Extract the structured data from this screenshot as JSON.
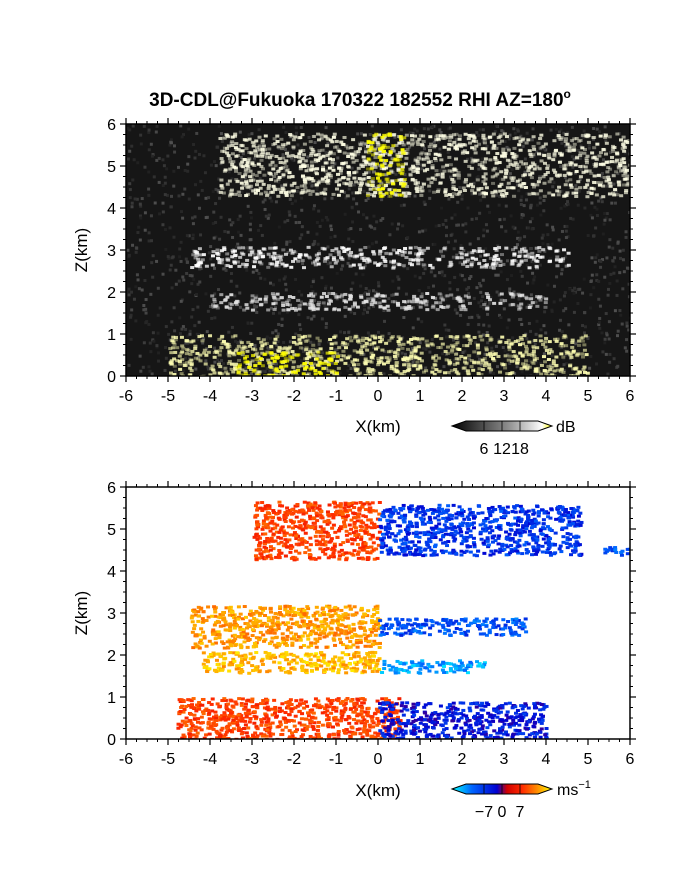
{
  "figure": {
    "title": "3D-CDL@Fukuoka 170322 182552 RHI AZ=180",
    "title_superscript": "o"
  },
  "chart_data": [
    {
      "type": "heatmap",
      "quantity": "reflectivity (SNR)",
      "xlabel": "X(km)",
      "ylabel": "Z(km)",
      "xlim": [
        -6,
        6
      ],
      "ylim": [
        0,
        6
      ],
      "xticks": [
        "-6",
        "-5",
        "-4",
        "-3",
        "-2",
        "-1",
        "0",
        "1",
        "2",
        "3",
        "4",
        "5",
        "6"
      ],
      "yticks": [
        "0",
        "1",
        "2",
        "3",
        "4",
        "5",
        "6"
      ],
      "colorbar": {
        "unit": "dB",
        "ticks": [
          "6",
          "12",
          "18"
        ],
        "range": [
          0,
          20
        ],
        "colors": [
          "#000000",
          "#ffffff",
          "#ffff00"
        ]
      },
      "layers": [
        {
          "feature": "upper cloud layer",
          "x": [
            -3.8,
            6.0
          ],
          "z": [
            4.3,
            5.8
          ],
          "level_db": 11
        },
        {
          "feature": "saturated core",
          "x": [
            -0.3,
            0.6
          ],
          "z": [
            4.3,
            5.8
          ],
          "level_db": 20
        },
        {
          "feature": "mid layer",
          "x": [
            -4.5,
            4.5
          ],
          "z": [
            2.6,
            3.1
          ],
          "level_db": 10
        },
        {
          "feature": "lower mid layer",
          "x": [
            -4.0,
            4.0
          ],
          "z": [
            1.6,
            2.0
          ],
          "level_db": 9
        },
        {
          "feature": "boundary layer",
          "x": [
            -5.0,
            5.0
          ],
          "z": [
            0.0,
            1.0
          ],
          "level_db": 13
        },
        {
          "feature": "ground clutter",
          "x": [
            -3.4,
            -1.0
          ],
          "z": [
            0.0,
            0.6
          ],
          "level_db": 20
        }
      ]
    },
    {
      "type": "heatmap",
      "quantity": "Doppler velocity",
      "xlabel": "X(km)",
      "ylabel": "Z(km)",
      "xlim": [
        -6,
        6
      ],
      "ylim": [
        0,
        6
      ],
      "xticks": [
        "-6",
        "-5",
        "-4",
        "-3",
        "-2",
        "-1",
        "0",
        "1",
        "2",
        "3",
        "4",
        "5",
        "6"
      ],
      "yticks": [
        "0",
        "1",
        "2",
        "3",
        "4",
        "5",
        "6"
      ],
      "colorbar": {
        "unit": "ms",
        "unit_superscript": "−1",
        "ticks": [
          "−7",
          "0",
          "7"
        ],
        "range": [
          -10,
          10
        ],
        "colors": [
          "#00ffff",
          "#0064ff",
          "#0000d0",
          "#d00000",
          "#ff2a00",
          "#ff8c00",
          "#ffff00"
        ]
      },
      "layers": [
        {
          "feature": "upper layer",
          "x": [
            -3.0,
            0.0
          ],
          "z": [
            4.3,
            5.7
          ],
          "velocity": 4
        },
        {
          "feature": "upper layer",
          "x": [
            0.0,
            4.8
          ],
          "z": [
            4.4,
            5.6
          ],
          "velocity": -5
        },
        {
          "feature": "upper layer far",
          "x": [
            5.3,
            6.0
          ],
          "z": [
            4.4,
            4.6
          ],
          "velocity": -6
        },
        {
          "feature": "mid layer",
          "x": [
            -4.5,
            0.0
          ],
          "z": [
            2.2,
            3.2
          ],
          "velocity": 7
        },
        {
          "feature": "mid layer",
          "x": [
            0.0,
            3.5
          ],
          "z": [
            2.5,
            2.9
          ],
          "velocity": -6
        },
        {
          "feature": "lower mid layer",
          "x": [
            -4.2,
            0.0
          ],
          "z": [
            1.6,
            2.1
          ],
          "velocity": 8
        },
        {
          "feature": "lower mid layer",
          "x": [
            0.0,
            2.5
          ],
          "z": [
            1.6,
            1.9
          ],
          "velocity": -8
        },
        {
          "feature": "boundary layer",
          "x": [
            -4.8,
            0.5
          ],
          "z": [
            0.0,
            1.0
          ],
          "velocity": 4
        },
        {
          "feature": "boundary layer",
          "x": [
            0.0,
            4.0
          ],
          "z": [
            0.0,
            0.9
          ],
          "velocity": -4
        }
      ]
    }
  ]
}
